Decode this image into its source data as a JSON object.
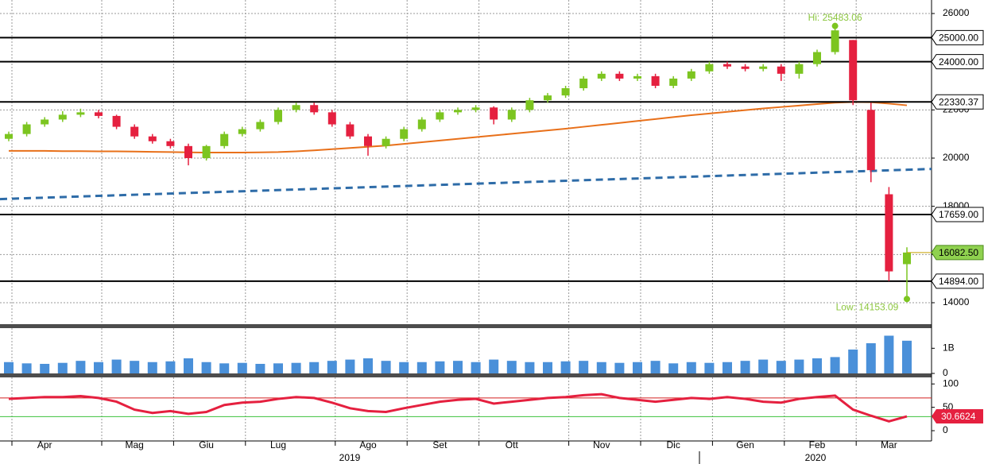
{
  "chart_data": [
    {
      "type": "candlestick",
      "categories": [
        null,
        null,
        "Apr",
        null,
        null,
        null,
        null,
        "Mag",
        null,
        null,
        null,
        "Giu",
        null,
        null,
        null,
        "Lug",
        null,
        null,
        null,
        null,
        "Ago",
        null,
        null,
        null,
        "Set",
        null,
        null,
        null,
        "Ott",
        null,
        null,
        null,
        null,
        "Nov",
        null,
        null,
        null,
        "Dic",
        null,
        null,
        null,
        "Gen",
        null,
        null,
        null,
        "Feb",
        null,
        null,
        null,
        "Mar",
        null
      ],
      "years": [
        "2019",
        "2020"
      ],
      "open": [
        20800,
        21000,
        21400,
        21600,
        21800,
        21900,
        21750,
        21300,
        20900,
        20700,
        20500,
        20000,
        20500,
        21000,
        21200,
        21500,
        22000,
        22200,
        21900,
        21400,
        20900,
        20500,
        20800,
        21200,
        21600,
        21900,
        22000,
        22100,
        21600,
        22000,
        22400,
        22600,
        22900,
        23300,
        23500,
        23300,
        23400,
        23000,
        23300,
        23600,
        23900,
        23800,
        23700,
        23800,
        23500,
        23900,
        24400,
        24900,
        22000,
        18500,
        15600
      ],
      "high": [
        21100,
        21500,
        21700,
        21950,
        22050,
        22000,
        21800,
        21400,
        21000,
        20800,
        20600,
        20550,
        21100,
        21300,
        21600,
        22100,
        22300,
        22300,
        22000,
        21500,
        21000,
        20900,
        21300,
        21700,
        22000,
        22100,
        22200,
        22150,
        22100,
        22500,
        22700,
        23000,
        23400,
        23600,
        23600,
        23500,
        23500,
        23400,
        23700,
        24000,
        24000,
        23900,
        23900,
        23900,
        24000,
        24500,
        25483.06,
        24900,
        22300,
        18800,
        16300
      ],
      "low": [
        20700,
        20900,
        21300,
        21500,
        21700,
        21650,
        21200,
        20800,
        20600,
        20400,
        19700,
        19900,
        20400,
        20900,
        21100,
        21400,
        21900,
        21800,
        21300,
        20800,
        20100,
        20400,
        20700,
        21100,
        21500,
        21800,
        21900,
        21400,
        21500,
        21900,
        22300,
        22500,
        22800,
        23200,
        23200,
        23200,
        22900,
        22900,
        23200,
        23500,
        23700,
        23600,
        23600,
        23200,
        23300,
        23800,
        24300,
        22200,
        19000,
        14900,
        14153.09
      ],
      "close": [
        21000,
        21400,
        21600,
        21800,
        21900,
        21750,
        21300,
        20900,
        20700,
        20500,
        20000,
        20500,
        21000,
        21200,
        21500,
        22000,
        22200,
        21900,
        21400,
        20900,
        20500,
        20800,
        21200,
        21600,
        21900,
        22000,
        22100,
        21600,
        22000,
        22400,
        22600,
        22900,
        23300,
        23500,
        23300,
        23400,
        23000,
        23300,
        23600,
        23900,
        23800,
        23700,
        23800,
        23500,
        23900,
        24400,
        25300,
        22400,
        19500,
        15300,
        16082.5
      ],
      "up_color": "#7cc520",
      "down_color": "#e5203f",
      "ylim": [
        13110,
        26560
      ],
      "yticks": [
        14000,
        16000,
        18000,
        20000,
        22000,
        24000,
        26000
      ],
      "grid": true,
      "lines": [
        {
          "color": "#e8701a",
          "values": [
            20300,
            20300,
            20300,
            20290,
            20290,
            20280,
            20280,
            20270,
            20260,
            20250,
            20240,
            20230,
            20230,
            20230,
            20240,
            20250,
            20280,
            20320,
            20370,
            20420,
            20470,
            20520,
            20590,
            20660,
            20730,
            20800,
            20870,
            20940,
            21010,
            21080,
            21150,
            21220,
            21300,
            21380,
            21460,
            21540,
            21620,
            21700,
            21780,
            21850,
            21920,
            21990,
            22060,
            22120,
            22180,
            22240,
            22300,
            22330,
            22320,
            22260,
            22190
          ]
        }
      ],
      "trend": {
        "color": "#2e6ca8",
        "values": [
          18300,
          19550
        ]
      },
      "levels": [
        {
          "value": 25000,
          "label": "25000.00"
        },
        {
          "value": 24000,
          "label": "24000.00"
        },
        {
          "value": 22330.37,
          "label": "22330.37"
        },
        {
          "value": 17659,
          "label": "17659.00"
        },
        {
          "value": 14894,
          "label": "14894.00"
        }
      ],
      "last": {
        "value": 16082.5,
        "label": "16082.50",
        "color": "#8fd14f"
      },
      "annotations": [
        "Hi: 25483.06",
        "Low: 14153.09"
      ]
    },
    {
      "type": "bar",
      "color": "#4a90d9",
      "values": [
        0.45,
        0.4,
        0.38,
        0.42,
        0.5,
        0.45,
        0.55,
        0.5,
        0.45,
        0.48,
        0.6,
        0.45,
        0.4,
        0.42,
        0.38,
        0.4,
        0.42,
        0.45,
        0.5,
        0.55,
        0.6,
        0.5,
        0.45,
        0.45,
        0.48,
        0.5,
        0.45,
        0.55,
        0.5,
        0.45,
        0.45,
        0.48,
        0.5,
        0.45,
        0.42,
        0.45,
        0.5,
        0.4,
        0.45,
        0.42,
        0.45,
        0.5,
        0.55,
        0.5,
        0.55,
        0.6,
        0.65,
        0.95,
        1.2,
        1.5,
        1.3
      ],
      "ylim": [
        0,
        1.8
      ],
      "yticks": [
        0,
        {
          "value": 1,
          "label": "1B"
        }
      ]
    },
    {
      "type": "line",
      "color": "#e5203f",
      "values": [
        68,
        70,
        72,
        72,
        74,
        70,
        62,
        45,
        38,
        42,
        36,
        40,
        55,
        60,
        62,
        68,
        72,
        70,
        60,
        48,
        42,
        40,
        48,
        55,
        62,
        66,
        68,
        58,
        62,
        66,
        70,
        72,
        76,
        78,
        70,
        66,
        62,
        66,
        70,
        68,
        72,
        68,
        62,
        60,
        68,
        72,
        75,
        45,
        32,
        20,
        30.6624
      ],
      "value_label": "30.6624",
      "ylim": [
        -22,
        114
      ],
      "yticks": [
        0,
        50,
        100
      ],
      "ref_lines": [
        {
          "value": 70,
          "color": "#d42020"
        },
        {
          "value": 30,
          "color": "#3cc13c"
        }
      ]
    }
  ]
}
